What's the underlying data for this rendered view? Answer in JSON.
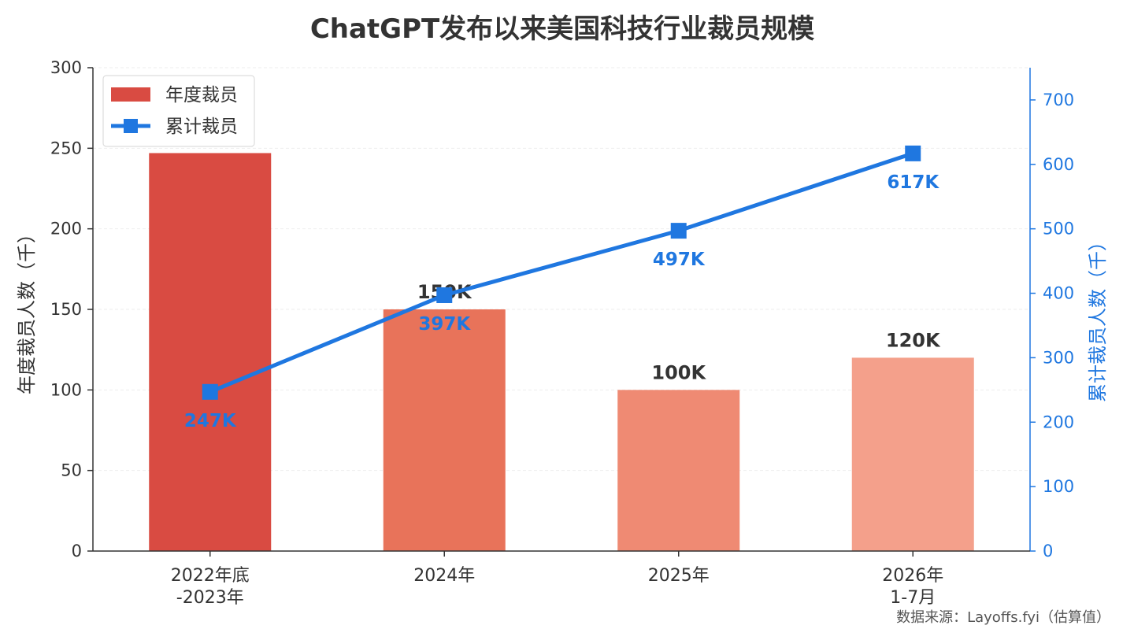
{
  "chart_data": {
    "type": "bar",
    "title": "ChatGPT发布以来美国科技行业裁员规模",
    "categories": [
      "2022年底\n-2023年",
      "2024年",
      "2025年",
      "2026年\n1-7月"
    ],
    "series": [
      {
        "name": "年度裁员",
        "type": "bar",
        "axis": "left",
        "values": [
          247,
          150,
          100,
          120
        ],
        "labels": [
          "",
          "150K",
          "100K",
          "120K"
        ],
        "colors": [
          "#d94b42",
          "#e8735a",
          "#ef8a73",
          "#f4a08b"
        ]
      },
      {
        "name": "累计裁员",
        "type": "line",
        "axis": "right",
        "values": [
          247,
          397,
          497,
          617
        ],
        "labels": [
          "247K",
          "397K",
          "497K",
          "617K"
        ],
        "color": "#1f77e0"
      }
    ],
    "ylabel_left": "年度裁员人数（千）",
    "ylabel_right": "累计裁员人数（千）",
    "ylim_left": [
      0,
      300
    ],
    "ylim_right": [
      0,
      750
    ],
    "yticks_left": [
      0,
      50,
      100,
      150,
      200,
      250,
      300
    ],
    "yticks_right": [
      0,
      100,
      200,
      300,
      400,
      500,
      600,
      700
    ],
    "legend_position": "top-left",
    "grid": true
  },
  "source_note": "数据来源：Layoffs.fyi（估算值）"
}
